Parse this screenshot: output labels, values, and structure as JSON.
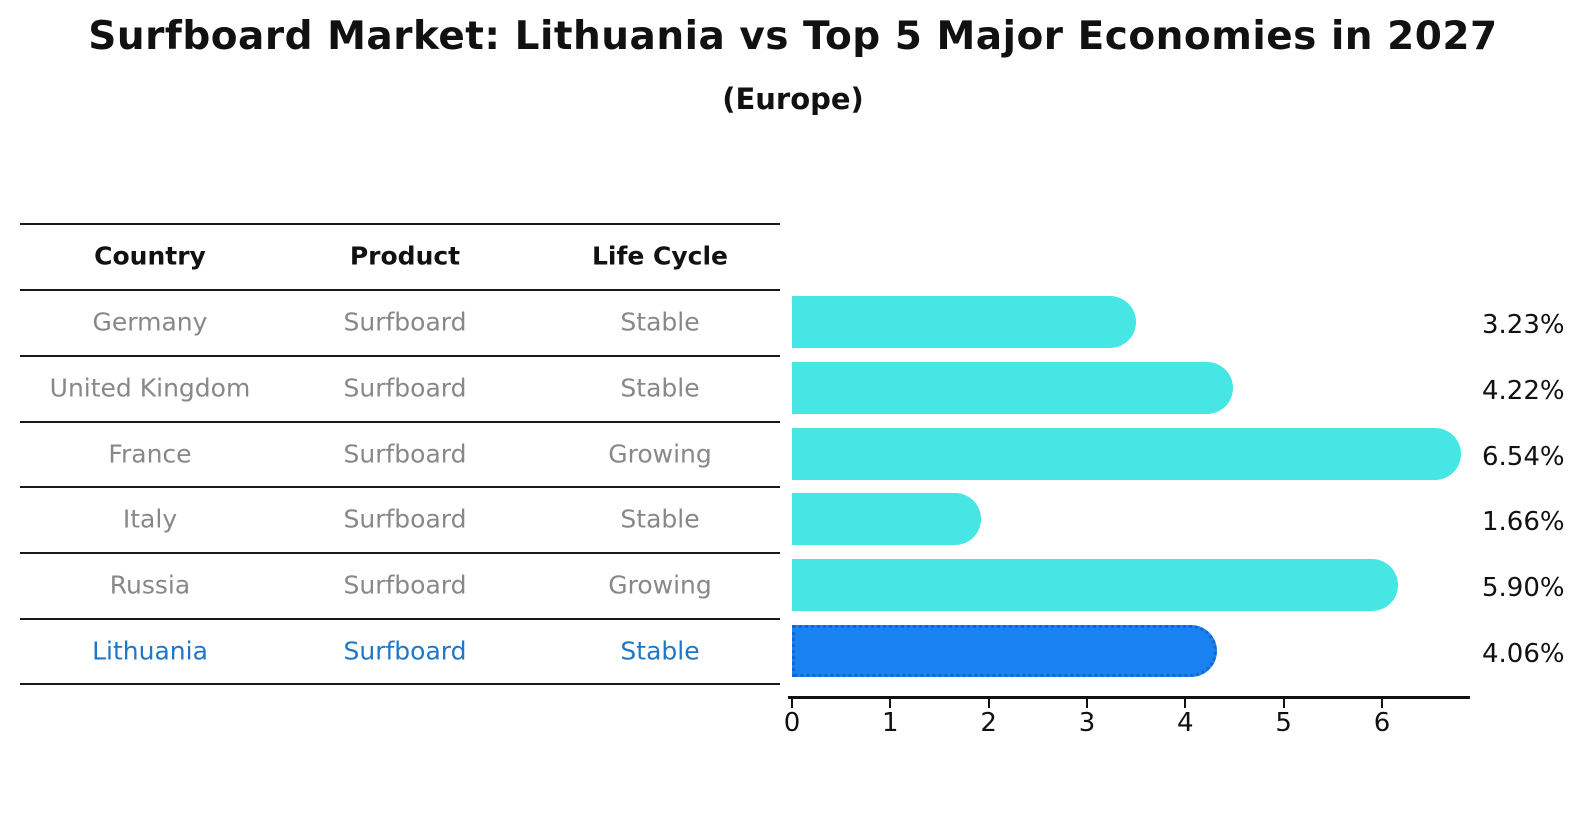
{
  "title": "Surfboard Market: Lithuania vs Top 5 Major Economies in 2027",
  "subtitle": "(Europe)",
  "table": {
    "headers": [
      "Country",
      "Product",
      "Life Cycle"
    ],
    "rows": [
      {
        "country": "Germany",
        "product": "Surfboard",
        "life_cycle": "Stable",
        "highlighted": false
      },
      {
        "country": "United Kingdom",
        "product": "Surfboard",
        "life_cycle": "Stable",
        "highlighted": false
      },
      {
        "country": "France",
        "product": "Surfboard",
        "life_cycle": "Growing",
        "highlighted": false
      },
      {
        "country": "Italy",
        "product": "Surfboard",
        "life_cycle": "Stable",
        "highlighted": false
      },
      {
        "country": "Russia",
        "product": "Surfboard",
        "life_cycle": "Growing",
        "highlighted": false
      },
      {
        "country": "Lithuania",
        "product": "Surfboard",
        "life_cycle": "Stable",
        "highlighted": true
      }
    ]
  },
  "chart_data": {
    "type": "bar",
    "orientation": "horizontal",
    "title": "Surfboard Market: Lithuania vs Top 5 Major Economies in 2027 (Europe)",
    "categories": [
      "Germany",
      "United Kingdom",
      "France",
      "Italy",
      "Russia",
      "Lithuania"
    ],
    "values": [
      3.23,
      4.22,
      6.54,
      1.66,
      5.9,
      4.06
    ],
    "value_labels": [
      "3.23%",
      "4.22%",
      "6.54%",
      "1.66%",
      "5.90%",
      "4.06%"
    ],
    "x_ticks": [
      0,
      1,
      2,
      3,
      4,
      5,
      6
    ],
    "xlim": [
      0,
      6.9
    ],
    "grid": false,
    "legend": "none",
    "highlight_index": 5
  },
  "colors": {
    "bar": "#46E6E4",
    "highlight_fill": "#1A82F0",
    "highlight_border": "#1565D4",
    "table_text": "#888888",
    "highlight_text": "#1F77C9",
    "ink": "#111111"
  }
}
